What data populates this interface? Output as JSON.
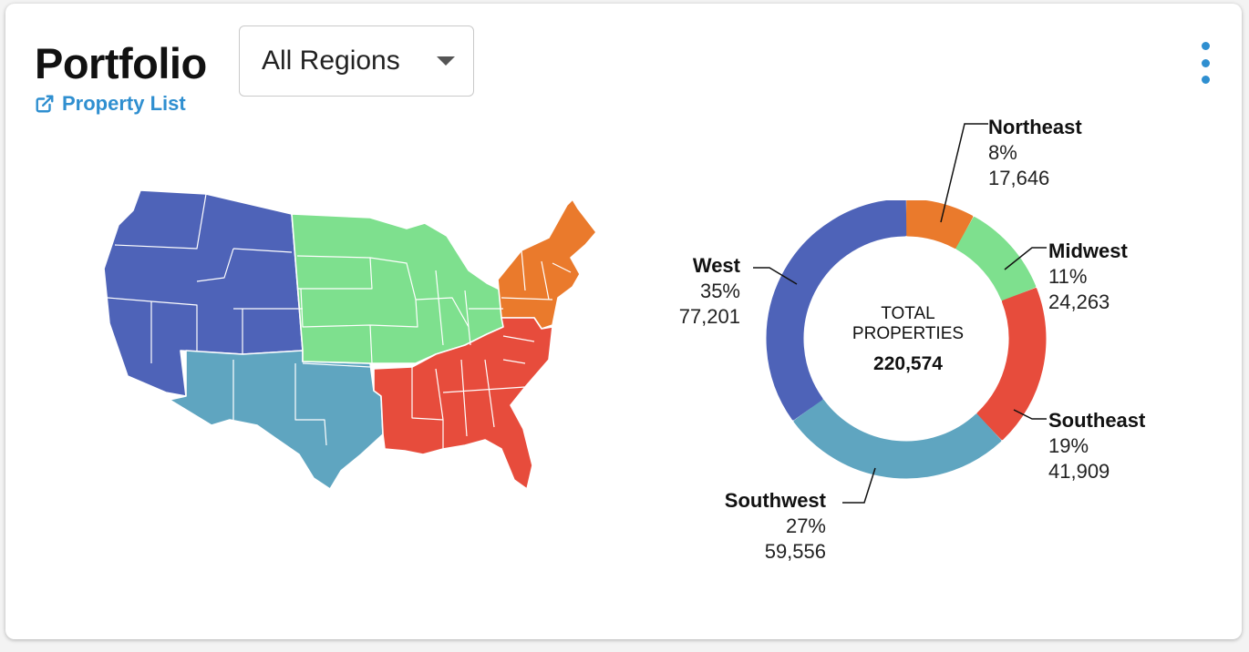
{
  "header": {
    "title": "Portfolio",
    "link_label": "Property List",
    "link_icon": "external-link-icon",
    "region_select": {
      "value": "All Regions"
    },
    "menu_icon": "kebab-menu-icon"
  },
  "colors": {
    "West": "#4e63b8",
    "Midwest": "#7ee08e",
    "Northeast": "#ea7a2c",
    "Southeast": "#e74c3c",
    "Southwest": "#5fa5c0",
    "link": "#2f8fd0"
  },
  "map": {
    "label": "United States regions map"
  },
  "chart_data": {
    "type": "donut",
    "center_label": "TOTAL PROPERTIES",
    "total": "220,574",
    "series": [
      {
        "name": "Northeast",
        "percent": "8%",
        "value": 17646,
        "value_label": "17,646",
        "color": "#ea7a2c"
      },
      {
        "name": "Midwest",
        "percent": "11%",
        "value": 24263,
        "value_label": "24,263",
        "color": "#7ee08e"
      },
      {
        "name": "Southeast",
        "percent": "19%",
        "value": 41909,
        "value_label": "41,909",
        "color": "#e74c3c"
      },
      {
        "name": "Southwest",
        "percent": "27%",
        "value": 59556,
        "value_label": "59,556",
        "color": "#5fa5c0"
      },
      {
        "name": "West",
        "percent": "35%",
        "value": 77201,
        "value_label": "77,201",
        "color": "#4e63b8"
      }
    ]
  }
}
